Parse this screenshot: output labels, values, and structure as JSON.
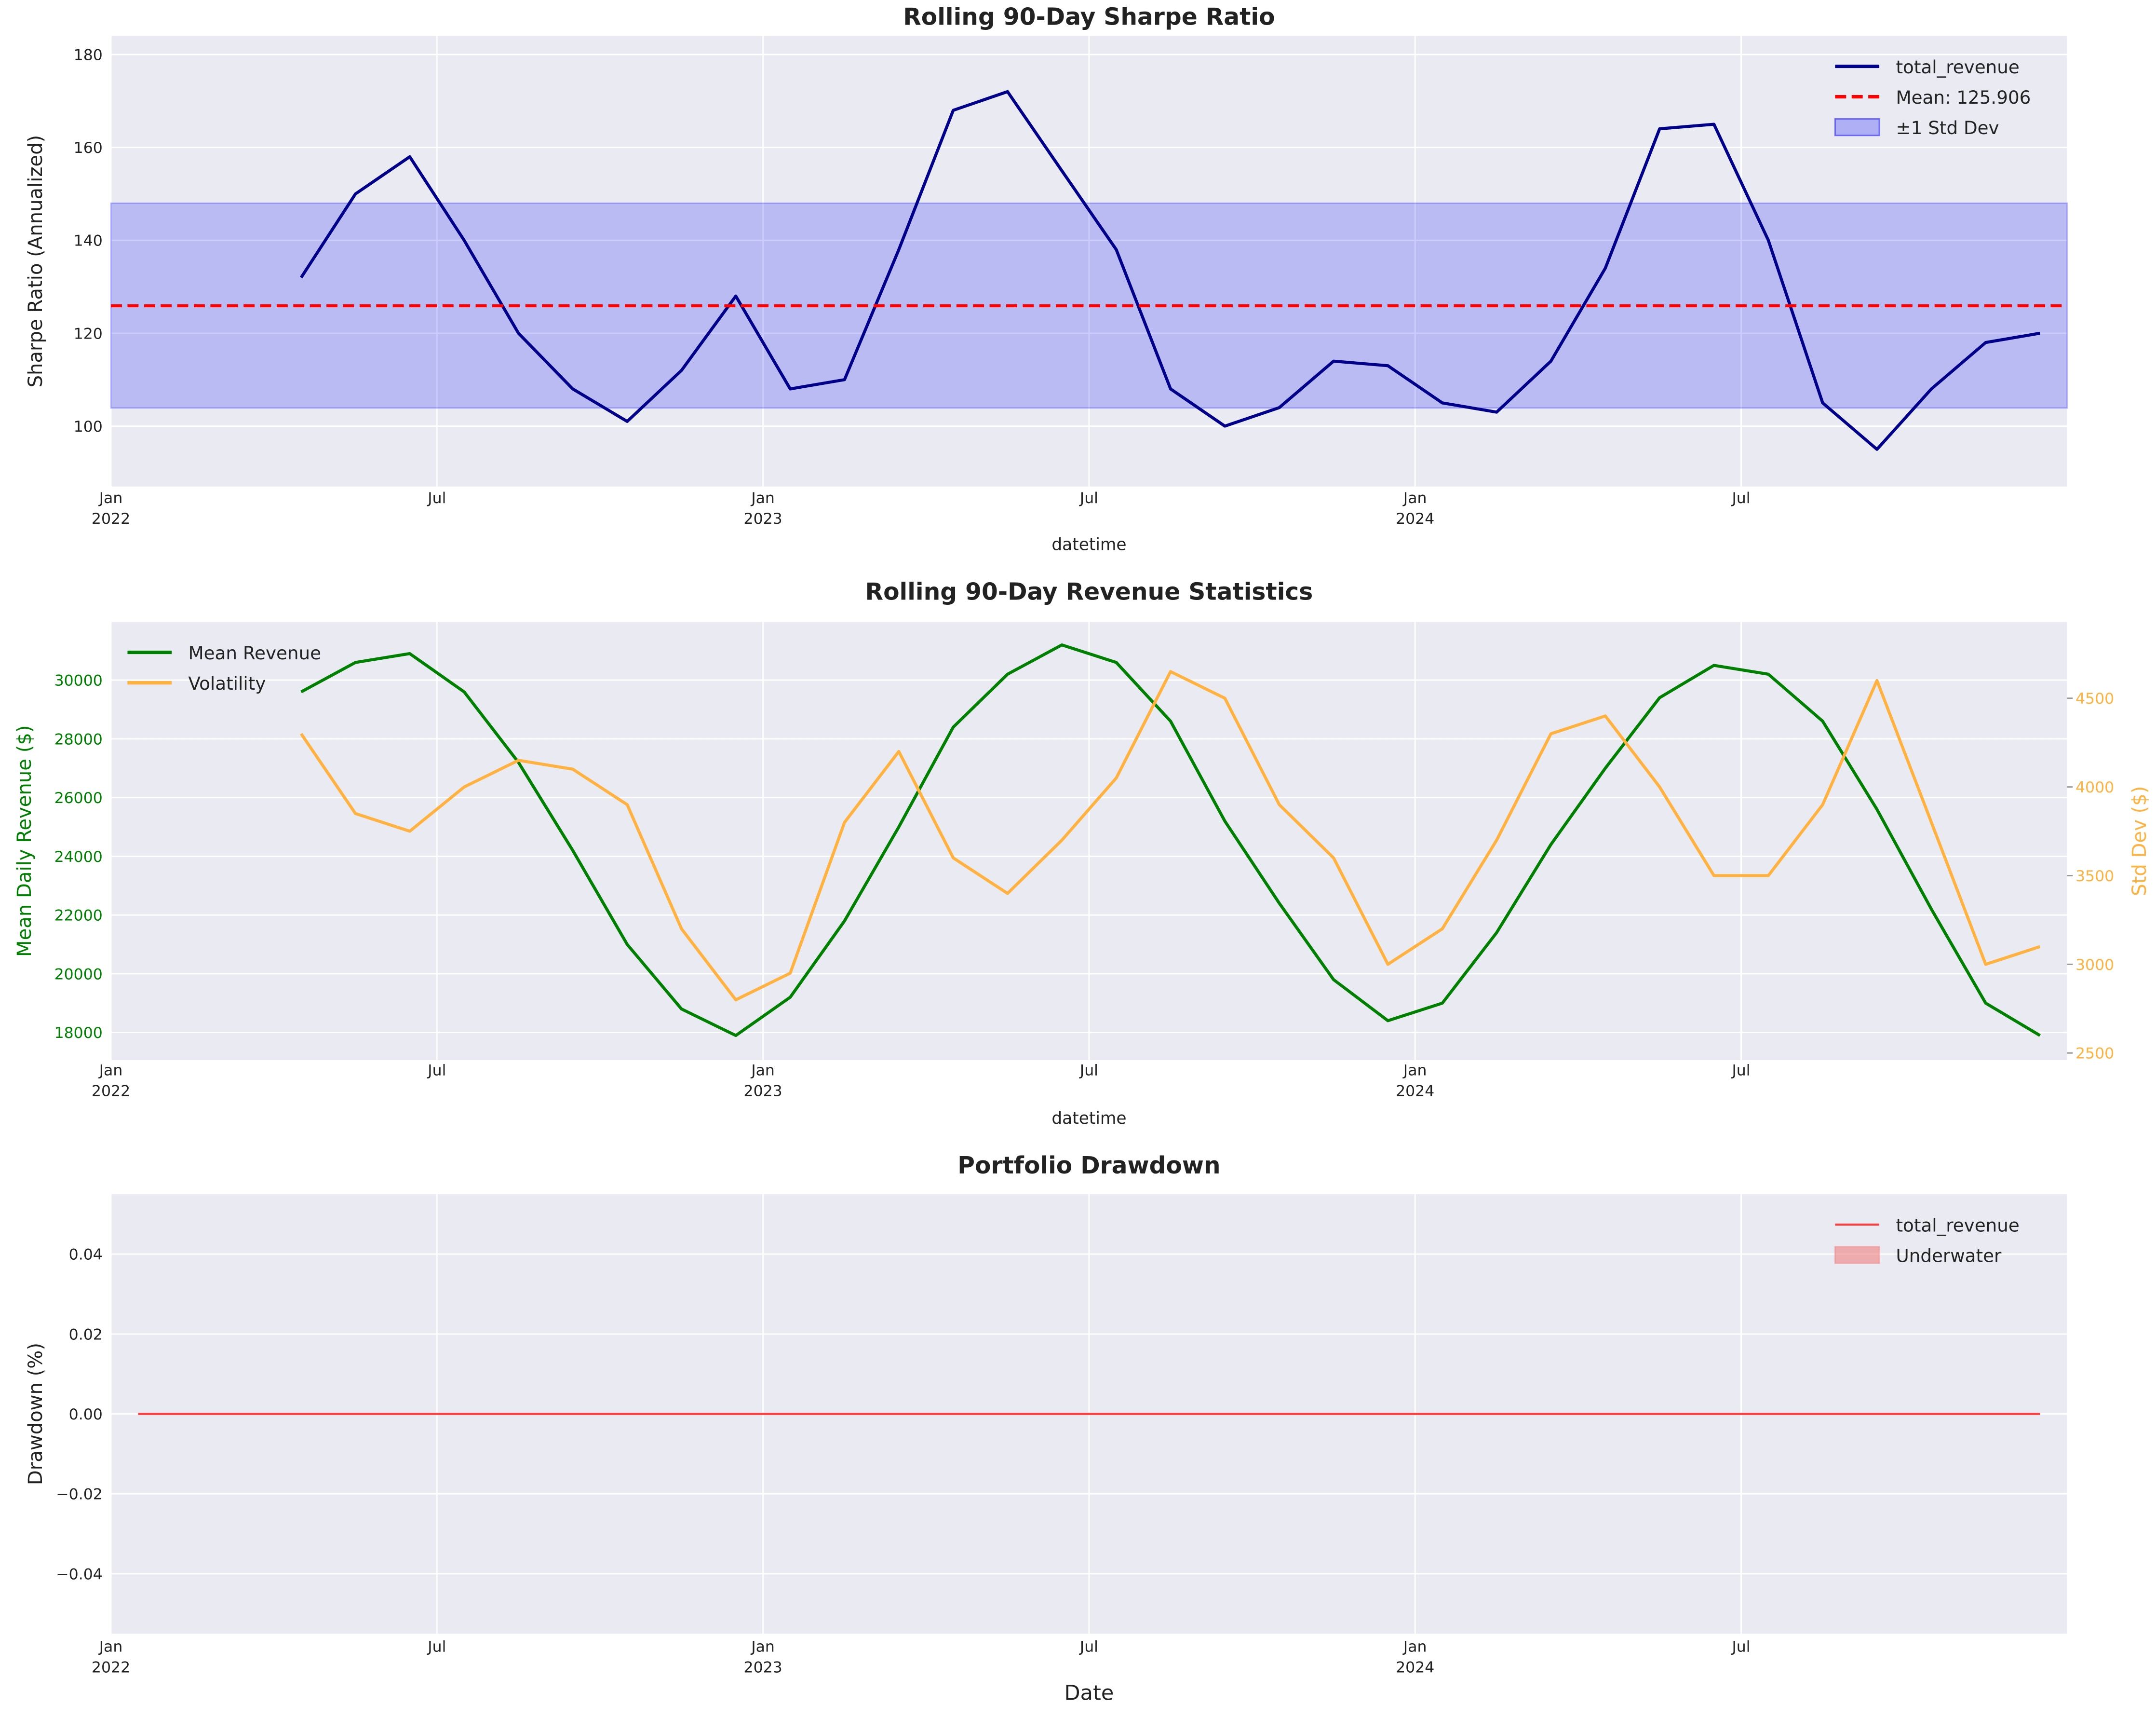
{
  "chart_data": [
    {
      "type": "line",
      "title": "Rolling 90-Day Sharpe Ratio",
      "xlabel": "datetime",
      "ylabel": "Sharpe Ratio (Annualized)",
      "x": [
        "2022-04",
        "2022-05",
        "2022-06",
        "2022-07",
        "2022-08",
        "2022-09",
        "2022-10",
        "2022-11",
        "2022-12",
        "2023-01",
        "2023-02",
        "2023-03",
        "2023-04",
        "2023-05",
        "2023-06",
        "2023-07",
        "2023-08",
        "2023-09",
        "2023-10",
        "2023-11",
        "2023-12",
        "2024-01",
        "2024-02",
        "2024-03",
        "2024-04",
        "2024-05",
        "2024-06",
        "2024-07",
        "2024-08",
        "2024-09",
        "2024-10",
        "2024-11",
        "2024-12"
      ],
      "series": [
        {
          "name": "total_revenue",
          "color": "#00008b",
          "values": [
            132,
            150,
            158,
            140,
            120,
            108,
            101,
            112,
            128,
            108,
            110,
            138,
            168,
            172,
            155,
            138,
            108,
            100,
            104,
            114,
            113,
            105,
            103,
            114,
            134,
            164,
            165,
            140,
            105,
            95,
            108,
            118,
            120
          ]
        }
      ],
      "mean_line": {
        "label": "Mean: 125.906",
        "value": 125.906,
        "color": "#ff0000"
      },
      "std_band": {
        "label": "±1 Std Dev",
        "values": [
          103.9,
          148.0
        ],
        "color": "#0000ff"
      },
      "xlim": [
        "2022-01",
        "2024-12"
      ],
      "xticks": [
        {
          "value": "2022-01",
          "label": "Jan 2022"
        },
        {
          "value": "2022-07",
          "label": "Jul"
        },
        {
          "value": "2023-01",
          "label": "Jan 2023"
        },
        {
          "value": "2023-07",
          "label": "Jul"
        },
        {
          "value": "2024-01",
          "label": "Jan 2024"
        },
        {
          "value": "2024-07",
          "label": "Jul"
        }
      ],
      "ylim": [
        87,
        184
      ],
      "yticks": [
        100,
        120,
        140,
        160,
        180
      ],
      "grid": true,
      "legend": "upper right"
    },
    {
      "type": "line",
      "title": "Rolling 90-Day Revenue Statistics",
      "xlabel": "datetime",
      "ylabel": "Mean Daily Revenue ($)",
      "y2label": "Std Dev ($)",
      "x": [
        "2022-04",
        "2022-05",
        "2022-06",
        "2022-07",
        "2022-08",
        "2022-09",
        "2022-10",
        "2022-11",
        "2022-12",
        "2023-01",
        "2023-02",
        "2023-03",
        "2023-04",
        "2023-05",
        "2023-06",
        "2023-07",
        "2023-08",
        "2023-09",
        "2023-10",
        "2023-11",
        "2023-12",
        "2024-01",
        "2024-02",
        "2024-03",
        "2024-04",
        "2024-05",
        "2024-06",
        "2024-07",
        "2024-08",
        "2024-09",
        "2024-10",
        "2024-11",
        "2024-12"
      ],
      "series": [
        {
          "name": "Mean Revenue",
          "color": "#008000",
          "axis": "y",
          "values": [
            29600,
            30600,
            30900,
            29600,
            27200,
            24200,
            21000,
            18800,
            17900,
            19200,
            21800,
            25000,
            28400,
            30200,
            31200,
            30600,
            28600,
            25200,
            22400,
            19800,
            18400,
            19000,
            21400,
            24400,
            27000,
            29400,
            30500,
            30200,
            28600,
            25600,
            22200,
            19000,
            17900
          ]
        },
        {
          "name": "Volatility",
          "color": "#ffb23f",
          "axis": "y2",
          "values": [
            4300,
            3850,
            3750,
            4000,
            4150,
            4100,
            3900,
            3200,
            2800,
            2950,
            3800,
            4200,
            3600,
            3400,
            3700,
            4050,
            4650,
            4500,
            3900,
            3600,
            3000,
            3200,
            3700,
            4300,
            4400,
            4000,
            3500,
            3500,
            3900,
            4600,
            3800,
            3000,
            3100
          ]
        }
      ],
      "xlim": [
        "2022-01",
        "2024-12"
      ],
      "xticks": [
        {
          "value": "2022-01",
          "label": "Jan 2022"
        },
        {
          "value": "2022-07",
          "label": "Jul"
        },
        {
          "value": "2023-01",
          "label": "Jan 2023"
        },
        {
          "value": "2023-07",
          "label": "Jul"
        },
        {
          "value": "2024-01",
          "label": "Jan 2024"
        },
        {
          "value": "2024-07",
          "label": "Jul"
        }
      ],
      "ylim": [
        17060,
        31980
      ],
      "yticks": [
        18000,
        20000,
        22000,
        24000,
        26000,
        28000,
        30000
      ],
      "y2lim": [
        2460,
        4930
      ],
      "y2ticks": [
        2500,
        3000,
        3500,
        4000,
        4500
      ],
      "grid": true,
      "legend": "upper left"
    },
    {
      "type": "line",
      "title": "Portfolio Drawdown",
      "xlabel": "Date",
      "ylabel": "Drawdown (%)",
      "x": [
        "2022-01",
        "2022-02",
        "2022-03",
        "2022-04",
        "2022-05",
        "2022-06",
        "2022-07",
        "2022-08",
        "2022-09",
        "2022-10",
        "2022-11",
        "2022-12",
        "2023-01",
        "2023-02",
        "2023-03",
        "2023-04",
        "2023-05",
        "2023-06",
        "2023-07",
        "2023-08",
        "2023-09",
        "2023-10",
        "2023-11",
        "2023-12",
        "2024-01",
        "2024-02",
        "2024-03",
        "2024-04",
        "2024-05",
        "2024-06",
        "2024-07",
        "2024-08",
        "2024-09",
        "2024-10",
        "2024-11",
        "2024-12"
      ],
      "series": [
        {
          "name": "total_revenue",
          "color": "#ff3b3b",
          "values": [
            0,
            0,
            0,
            0,
            0,
            0,
            0,
            0,
            0,
            0,
            0,
            0,
            0,
            0,
            0,
            0,
            0,
            0,
            0,
            0,
            0,
            0,
            0,
            0,
            0,
            0,
            0,
            0,
            0,
            0,
            0,
            0,
            0,
            0,
            0,
            0
          ]
        }
      ],
      "fill": {
        "label": "Underwater",
        "color": "#f08080"
      },
      "xlim": [
        "2022-01",
        "2024-12"
      ],
      "xticks": [
        {
          "value": "2022-01",
          "label": "Jan 2022"
        },
        {
          "value": "2022-07",
          "label": "Jul"
        },
        {
          "value": "2023-01",
          "label": "Jan 2023"
        },
        {
          "value": "2023-07",
          "label": "Jul"
        },
        {
          "value": "2024-01",
          "label": "Jan 2024"
        },
        {
          "value": "2024-07",
          "label": "Jul"
        }
      ],
      "ylim": [
        -0.055,
        0.055
      ],
      "yticks": [
        {
          "value": -0.04,
          "label": "−0.04"
        },
        {
          "value": -0.02,
          "label": "−0.02"
        },
        {
          "value": 0,
          "label": "0.00"
        },
        {
          "value": 0.02,
          "label": "0.02"
        },
        {
          "value": 0.04,
          "label": "0.04"
        }
      ],
      "grid": true,
      "legend": "upper right"
    }
  ]
}
